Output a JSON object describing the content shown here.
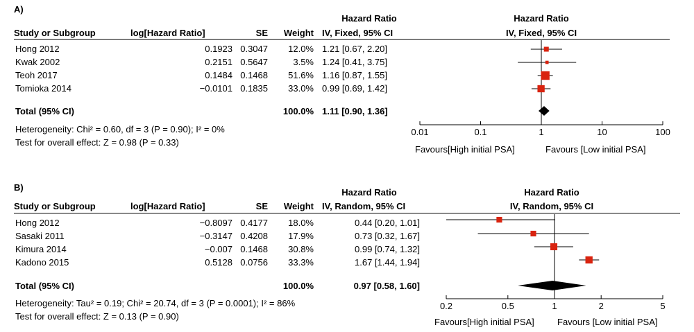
{
  "panels": [
    {
      "label": "A)",
      "header": {
        "study": "Study or Subgroup",
        "loghr": "log[Hazard Ratio]",
        "se": "SE",
        "weight": "Weight",
        "hr_title": "Hazard Ratio",
        "hr_method": "IV, Fixed, 95% CI",
        "plot_title": "Hazard Ratio",
        "plot_method": "IV, Fixed, 95% CI"
      },
      "rows": [
        {
          "study": "Hong 2012",
          "loghr": "0.1923",
          "se": "0.3047",
          "weight": "12.0%",
          "ci_text": "1.21 [0.67, 2.20]",
          "hr": 1.21,
          "lo": 0.67,
          "hi": 2.2,
          "w": 12.0
        },
        {
          "study": "Kwak 2002",
          "loghr": "0.2151",
          "se": "0.5647",
          "weight": "3.5%",
          "ci_text": "1.24 [0.41, 3.75]",
          "hr": 1.24,
          "lo": 0.41,
          "hi": 3.75,
          "w": 3.5
        },
        {
          "study": "Teoh 2017",
          "loghr": "0.1484",
          "se": "0.1468",
          "weight": "51.6%",
          "ci_text": "1.16 [0.87, 1.55]",
          "hr": 1.16,
          "lo": 0.87,
          "hi": 1.55,
          "w": 51.6
        },
        {
          "study": "Tomioka 2014",
          "loghr": "−0.0101",
          "se": "0.1835",
          "weight": "33.0%",
          "ci_text": "0.99 [0.69, 1.42]",
          "hr": 0.99,
          "lo": 0.69,
          "hi": 1.42,
          "w": 33.0
        }
      ],
      "total": {
        "label": "Total (95% CI)",
        "weight": "100.0%",
        "ci_text": "1.11 [0.90, 1.36]",
        "hr": 1.11,
        "lo": 0.9,
        "hi": 1.36
      },
      "heterogeneity": "Heterogeneity: Chi² = 0.60, df = 3 (P = 0.90); I² = 0%",
      "overall_effect": "Test for overall effect: Z = 0.98 (P = 0.33)",
      "axis": {
        "scale": "log",
        "min": 0.01,
        "max": 100,
        "ticks": [
          0.01,
          0.1,
          1,
          10,
          100
        ],
        "tick_labels": [
          "0.01",
          "0.1",
          "1",
          "10",
          "100"
        ]
      },
      "favours_left": "Favours[High initial PSA]",
      "favours_right": "Favours [Low initial PSA]"
    },
    {
      "label": "B)",
      "header": {
        "study": "Study or Subgroup",
        "loghr": "log[Hazard Ratio]",
        "se": "SE",
        "weight": "Weight",
        "hr_title": "Hazard Ratio",
        "hr_method": "IV, Random, 95% CI",
        "plot_title": "Hazard Ratio",
        "plot_method": "IV, Random, 95% CI"
      },
      "rows": [
        {
          "study": "Hong 2012",
          "loghr": "−0.8097",
          "se": "0.4177",
          "weight": "18.0%",
          "ci_text": "0.44 [0.20, 1.01]",
          "hr": 0.44,
          "lo": 0.2,
          "hi": 1.01,
          "w": 18.0
        },
        {
          "study": "Sasaki 2011",
          "loghr": "−0.3147",
          "se": "0.4208",
          "weight": "17.9%",
          "ci_text": "0.73 [0.32, 1.67]",
          "hr": 0.73,
          "lo": 0.32,
          "hi": 1.67,
          "w": 17.9
        },
        {
          "study": "Kimura 2014",
          "loghr": "−0.007",
          "se": "0.1468",
          "weight": "30.8%",
          "ci_text": "0.99 [0.74, 1.32]",
          "hr": 0.99,
          "lo": 0.74,
          "hi": 1.32,
          "w": 30.8
        },
        {
          "study": "Kadono 2015",
          "loghr": "0.5128",
          "se": "0.0756",
          "weight": "33.3%",
          "ci_text": "1.67 [1.44, 1.94]",
          "hr": 1.67,
          "lo": 1.44,
          "hi": 1.94,
          "w": 33.3
        }
      ],
      "total": {
        "label": "Total (95% CI)",
        "weight": "100.0%",
        "ci_text": "0.97 [0.58, 1.60]",
        "hr": 0.97,
        "lo": 0.58,
        "hi": 1.6
      },
      "heterogeneity": "Heterogeneity: Tau² = 0.19; Chi² = 20.74, df = 3 (P = 0.0001); I² = 86%",
      "overall_effect": "Test for overall effect: Z = 0.13 (P = 0.90)",
      "axis": {
        "scale": "log",
        "min": 0.2,
        "max": 5,
        "ticks": [
          0.2,
          0.5,
          1,
          2,
          5
        ],
        "tick_labels": [
          "0.2",
          "0.5",
          "1",
          "2",
          "5"
        ]
      },
      "favours_left": "Favours[High initial PSA]",
      "favours_right": "Favours [Low initial PSA]"
    }
  ],
  "colors": {
    "marker": "#d9230f",
    "line": "#000000"
  },
  "chart_data": [
    {
      "type": "forest",
      "title": "A)",
      "x_scale": "log",
      "xlim": [
        0.01,
        100
      ],
      "categories": [
        "Hong 2012",
        "Kwak 2002",
        "Teoh 2017",
        "Tomioka 2014",
        "Total (95% CI)"
      ],
      "hr": [
        1.21,
        1.24,
        1.16,
        0.99,
        1.11
      ],
      "ci_low": [
        0.67,
        0.41,
        0.87,
        0.69,
        0.9
      ],
      "ci_high": [
        2.2,
        3.75,
        1.55,
        1.42,
        1.36
      ],
      "weight_pct": [
        12.0,
        3.5,
        51.6,
        33.0,
        100.0
      ]
    },
    {
      "type": "forest",
      "title": "B)",
      "x_scale": "log",
      "xlim": [
        0.2,
        5
      ],
      "categories": [
        "Hong 2012",
        "Sasaki 2011",
        "Kimura 2014",
        "Kadono 2015",
        "Total (95% CI)"
      ],
      "hr": [
        0.44,
        0.73,
        0.99,
        1.67,
        0.97
      ],
      "ci_low": [
        0.2,
        0.32,
        0.74,
        1.44,
        0.58
      ],
      "ci_high": [
        1.01,
        1.67,
        1.32,
        1.94,
        1.6
      ],
      "weight_pct": [
        18.0,
        17.9,
        30.8,
        33.3,
        100.0
      ]
    }
  ]
}
